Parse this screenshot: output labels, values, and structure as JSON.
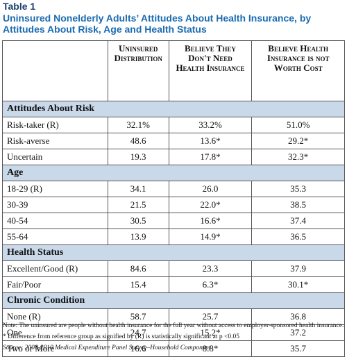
{
  "title": "Table 1",
  "subtitle": "Uninsured Nonelderly Adults’ Attitudes About Health Insurance, by Attitudes About Risk, Age and Health Status",
  "table": {
    "columns": [
      "Uninsured Distribution",
      "Believe They Don't Need Health Insurance",
      "Believe Health Insurance is not Worth Cost"
    ],
    "sections": [
      {
        "title": "Attitudes About Risk",
        "rows": [
          [
            "Risk-taker (R)",
            "32.1%",
            "33.2%",
            "51.0%"
          ],
          [
            "Risk-averse",
            "48.6",
            "13.6*",
            "29.2*"
          ],
          [
            "Uncertain",
            "19.3",
            "17.8*",
            "32.3*"
          ]
        ]
      },
      {
        "title": "Age",
        "rows": [
          [
            "18-29 (R)",
            "34.1",
            "26.0",
            "35.3"
          ],
          [
            "30-39",
            "21.5",
            "22.0*",
            "38.5"
          ],
          [
            "40-54",
            "30.5",
            "16.6*",
            "37.4"
          ],
          [
            "55-64",
            "13.9",
            "14.9*",
            "36.5"
          ]
        ]
      },
      {
        "title": "Health Status",
        "rows": [
          [
            "Excellent/Good (R)",
            "84.6",
            "23.3",
            "37.9"
          ],
          [
            "Fair/Poor",
            "15.4",
            "6.3*",
            "30.1*"
          ]
        ]
      },
      {
        "title": "Chronic Condition",
        "rows": [
          [
            "None (R)",
            "58.7",
            "25.7",
            "36.8"
          ],
          [
            "One",
            "24.7",
            "15.2*",
            "37.2"
          ],
          [
            "Two or More",
            "16.6",
            "8.8*",
            "35.7"
          ]
        ]
      }
    ]
  },
  "notes": [
    "Note: The uninsured are people without health insurance for the full year without access to employer-sponsored health insurance.",
    "* Difference from reference group as signified by (R) is statistically significant at p <0.05",
    "Source: 2008-2010 Medical Expenditure Panel Survey–Household Component"
  ]
}
